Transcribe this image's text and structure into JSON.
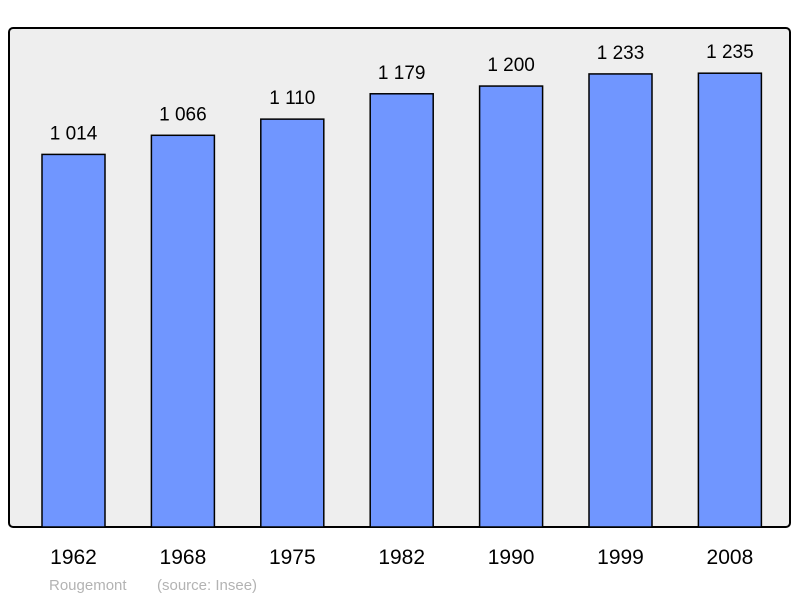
{
  "chart_data": {
    "type": "bar",
    "categories": [
      "1962",
      "1968",
      "1975",
      "1982",
      "1990",
      "1999",
      "2008"
    ],
    "values": [
      1014,
      1066,
      1110,
      1179,
      1200,
      1233,
      1235
    ],
    "value_labels": [
      "1 014",
      "1 066",
      "1 110",
      "1 179",
      "1 200",
      "1 233",
      "1 235"
    ],
    "ylim": [
      0,
      1358
    ],
    "grid": false,
    "colors": {
      "bar": "#7096ff",
      "background": "#eeeeee",
      "stroke": "#000000"
    }
  },
  "caption": {
    "place": "Rougemont",
    "source": "(source: Insee)"
  }
}
